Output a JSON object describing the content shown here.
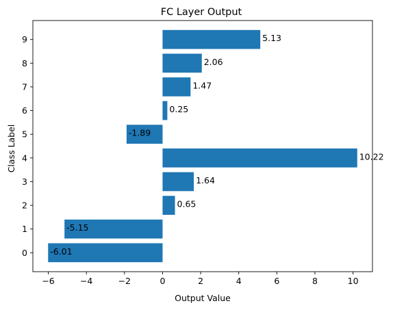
{
  "chart_data": {
    "type": "bar",
    "orientation": "horizontal",
    "title": "FC Layer Output",
    "xlabel": "Output Value",
    "ylabel": "Class Label",
    "categories": [
      "0",
      "1",
      "2",
      "3",
      "4",
      "5",
      "6",
      "7",
      "8",
      "9"
    ],
    "values": [
      -6.01,
      -5.15,
      0.65,
      1.64,
      10.22,
      -1.89,
      0.25,
      1.47,
      2.06,
      5.13
    ],
    "value_labels": [
      "-6.01",
      "-5.15",
      "0.65",
      "1.64",
      "10.22",
      "-1.89",
      "0.25",
      "1.47",
      "2.06",
      "5.13"
    ],
    "xlim": [
      -6.81,
      11.02
    ],
    "xticks": [
      -6,
      -4,
      -2,
      0,
      2,
      4,
      6,
      8,
      10
    ],
    "xtick_labels": [
      "−6",
      "−4",
      "−2",
      "0",
      "2",
      "4",
      "6",
      "8",
      "10"
    ],
    "grid": false,
    "bar_color": "#1f77b4"
  }
}
